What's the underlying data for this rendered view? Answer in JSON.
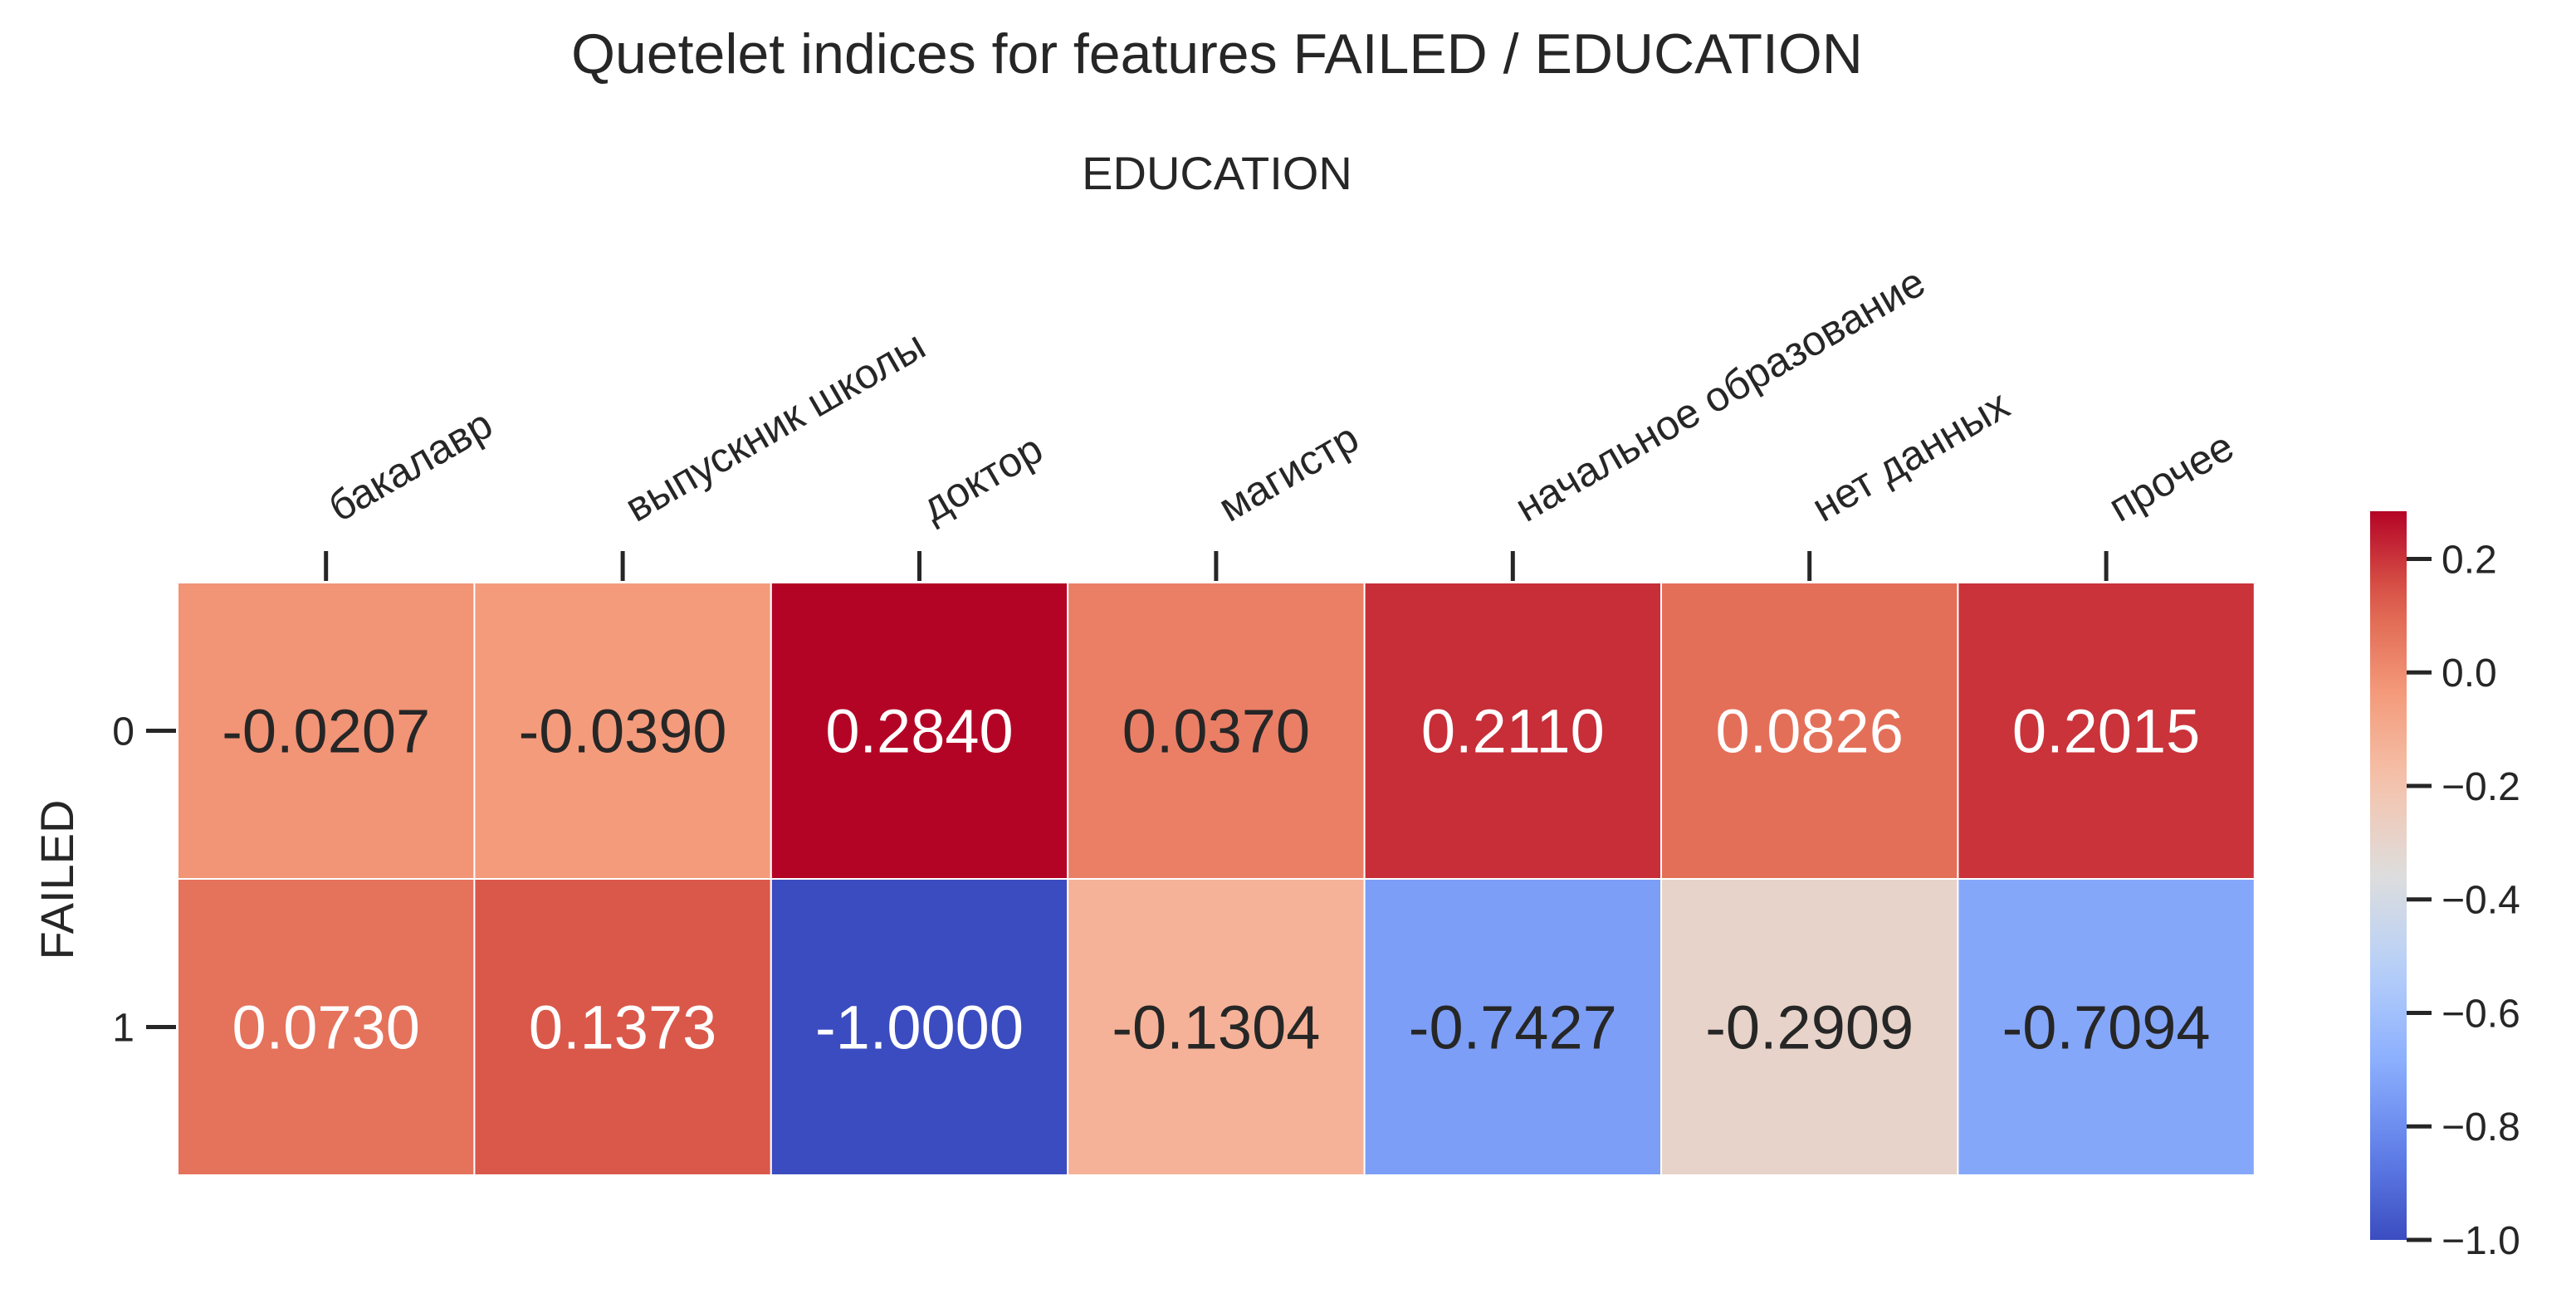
{
  "chart_data": {
    "type": "heatmap",
    "title": "Quetelet indices for features FAILED / EDUCATION",
    "xlabel": "EDUCATION",
    "ylabel": "FAILED",
    "x_categories": [
      "бакалавр",
      "выпускник школы",
      "доктор",
      "магистр",
      "начальное образование",
      "нет данных",
      "прочее"
    ],
    "y_categories": [
      "0",
      "1"
    ],
    "values": [
      [
        -0.0207,
        -0.039,
        0.284,
        0.037,
        0.211,
        0.0826,
        0.2015
      ],
      [
        0.073,
        0.1373,
        -1.0,
        -0.1304,
        -0.7427,
        -0.2909,
        -0.7094
      ]
    ],
    "cell_labels": [
      [
        "-0.0207",
        "-0.0390",
        "0.2840",
        "0.0370",
        "0.2110",
        "0.0826",
        "0.2015"
      ],
      [
        "0.0730",
        "0.1373",
        "-1.0000",
        "-0.1304",
        "-0.7427",
        "-0.2909",
        "-0.7094"
      ]
    ],
    "colormap": "coolwarm",
    "vmin": -1.0,
    "vmax": 0.284,
    "colorbar": {
      "ticks": [
        0.2,
        0.0,
        -0.2,
        -0.4,
        -0.6,
        -0.8,
        -1.0
      ],
      "tick_labels": [
        "0.2",
        "0.0",
        "−0.2",
        "−0.4",
        "−0.6",
        "−0.8",
        "−1.0"
      ]
    },
    "x_tick_position": "top",
    "grid": false
  }
}
